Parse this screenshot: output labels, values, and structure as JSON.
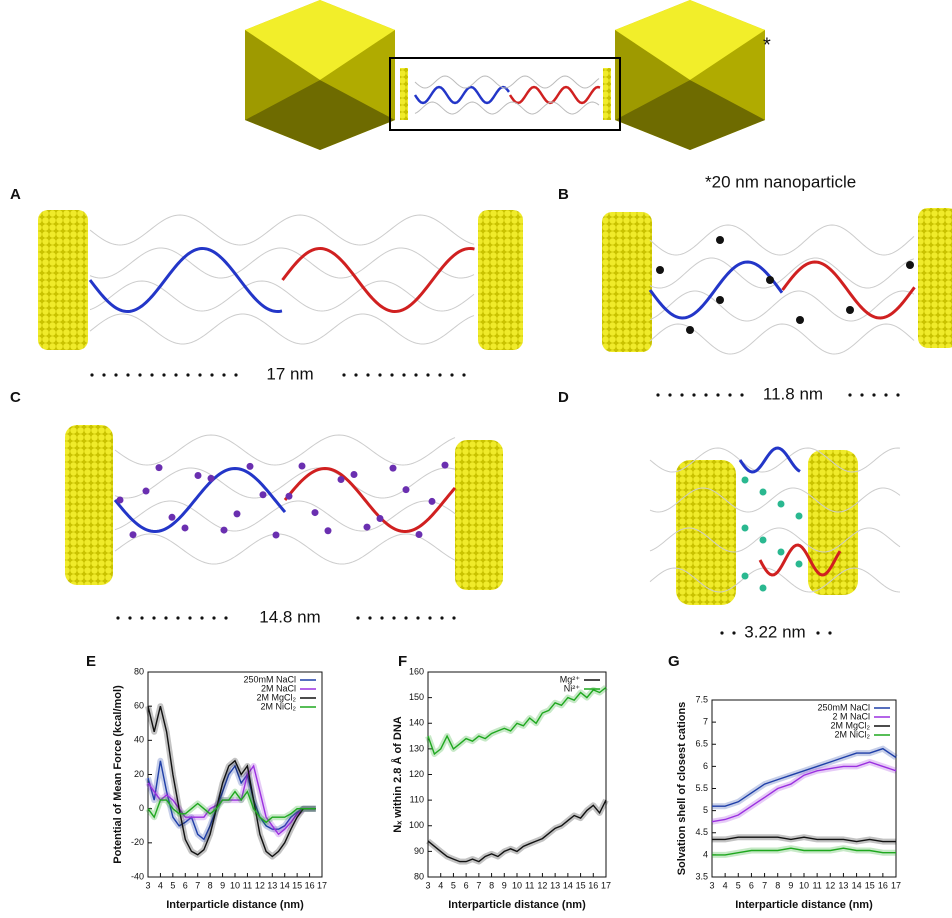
{
  "header": {
    "star": "*",
    "caption": "*20 nm nanoparticle"
  },
  "panels": [
    {
      "label": "A",
      "distance": "17 nm"
    },
    {
      "label": "B",
      "distance": "11.8 nm"
    },
    {
      "label": "C",
      "distance": "14.8 nm"
    },
    {
      "label": "D",
      "distance": "3.22 nm"
    }
  ],
  "chart_data": [
    {
      "type": "line",
      "label": "E",
      "xlabel": "Interparticle distance (nm)",
      "ylabel": "Potential of Mean Force (kcal/mol)",
      "legend": "upper right",
      "x": [
        3,
        3.5,
        4,
        4.5,
        5,
        5.5,
        6,
        6.5,
        7,
        7.5,
        8,
        8.5,
        9,
        9.5,
        10,
        10.5,
        11,
        11.5,
        12,
        12.5,
        13,
        13.5,
        14,
        14.5,
        15,
        15.5,
        16,
        16.5
      ],
      "xlim": [
        3,
        17
      ],
      "xticks": [
        3,
        4,
        5,
        6,
        7,
        8,
        9,
        10,
        11,
        12,
        13,
        14,
        15,
        16,
        17
      ],
      "ylim": [
        -40,
        80
      ],
      "yticks": [
        -40,
        -20,
        0,
        20,
        40,
        60,
        80
      ],
      "series": [
        {
          "name": "250mM NaCl",
          "color": "#1f3fa8",
          "values": [
            18,
            5,
            28,
            10,
            -5,
            -10,
            -8,
            -5,
            -15,
            -18,
            -10,
            0,
            10,
            20,
            25,
            15,
            20,
            5,
            -5,
            -10,
            -12,
            -12,
            -10,
            -5,
            -2,
            0,
            0,
            0
          ]
        },
        {
          "name": "2M NaCl",
          "color": "#9b30e0",
          "values": [
            15,
            10,
            5,
            8,
            5,
            0,
            -5,
            -5,
            -5,
            -5,
            0,
            2,
            5,
            5,
            5,
            5,
            20,
            25,
            10,
            -5,
            -10,
            -15,
            -12,
            -8,
            -3,
            0,
            0,
            0
          ]
        },
        {
          "name": "2M MgCl₂",
          "color": "#111111",
          "values": [
            60,
            45,
            60,
            45,
            20,
            0,
            -18,
            -25,
            -27,
            -24,
            -15,
            0,
            15,
            25,
            28,
            20,
            25,
            5,
            -15,
            -25,
            -28,
            -25,
            -20,
            -12,
            -5,
            0,
            0,
            0
          ]
        },
        {
          "name": "2M NiCl₂",
          "color": "#1fa81f",
          "values": [
            0,
            -5,
            5,
            5,
            0,
            -3,
            -3,
            0,
            3,
            0,
            -3,
            0,
            5,
            5,
            10,
            5,
            10,
            0,
            -5,
            -8,
            -5,
            -5,
            -5,
            -3,
            0,
            0,
            0,
            0
          ]
        }
      ]
    },
    {
      "type": "line",
      "label": "F",
      "xlabel": "Interparticle distance (nm)",
      "ylabel": "Nₓ within 2.8 Å of DNA",
      "legend": "upper right",
      "x": [
        3,
        3.5,
        4,
        4.5,
        5,
        5.5,
        6,
        6.5,
        7,
        7.5,
        8,
        8.5,
        9,
        9.5,
        10,
        10.5,
        11,
        11.5,
        12,
        12.5,
        13,
        13.5,
        14,
        14.5,
        15,
        15.5,
        16,
        16.5,
        17
      ],
      "xlim": [
        3,
        17
      ],
      "xticks": [
        3,
        4,
        5,
        6,
        7,
        8,
        9,
        10,
        11,
        12,
        13,
        14,
        15,
        16,
        17
      ],
      "ylim": [
        80,
        160
      ],
      "yticks": [
        80,
        90,
        100,
        110,
        120,
        130,
        140,
        150,
        160
      ],
      "series": [
        {
          "name": "Mg²⁺",
          "color": "#111111",
          "values": [
            94,
            92,
            90,
            88,
            87,
            86,
            86,
            87,
            86,
            88,
            89,
            88,
            90,
            91,
            90,
            92,
            93,
            94,
            95,
            97,
            99,
            100,
            102,
            104,
            103,
            106,
            108,
            105,
            110
          ]
        },
        {
          "name": "Ni²⁺",
          "color": "#1fa81f",
          "values": [
            135,
            128,
            130,
            135,
            130,
            132,
            134,
            133,
            135,
            134,
            136,
            137,
            138,
            137,
            140,
            139,
            142,
            140,
            144,
            145,
            148,
            147,
            150,
            149,
            152,
            150,
            153,
            152,
            154
          ]
        }
      ]
    },
    {
      "type": "line",
      "label": "G",
      "xlabel": "Interparticle distance (nm)",
      "ylabel": "Solvation shell of closest cations",
      "legend": "upper right",
      "x": [
        3,
        4,
        5,
        6,
        7,
        8,
        9,
        10,
        11,
        12,
        13,
        14,
        15,
        16,
        17
      ],
      "xlim": [
        3,
        17
      ],
      "xticks": [
        3,
        4,
        5,
        6,
        7,
        8,
        9,
        10,
        11,
        12,
        13,
        14,
        15,
        16,
        17
      ],
      "ylim": [
        3.5,
        7.5
      ],
      "yticks": [
        3.5,
        4,
        4.5,
        5,
        5.5,
        6,
        6.5,
        7,
        7.5
      ],
      "series": [
        {
          "name": "250mM NaCl",
          "color": "#1f3fa8",
          "values": [
            5.1,
            5.1,
            5.2,
            5.4,
            5.6,
            5.7,
            5.8,
            5.9,
            6.0,
            6.1,
            6.2,
            6.3,
            6.3,
            6.4,
            6.2
          ]
        },
        {
          "name": "2 M NaCl",
          "color": "#9b30e0",
          "values": [
            4.75,
            4.8,
            4.9,
            5.1,
            5.3,
            5.5,
            5.6,
            5.8,
            5.9,
            5.95,
            6.0,
            6.0,
            6.1,
            6.0,
            5.9
          ]
        },
        {
          "name": "2M MgCl₂",
          "color": "#111111",
          "values": [
            4.35,
            4.35,
            4.4,
            4.4,
            4.4,
            4.4,
            4.35,
            4.4,
            4.35,
            4.35,
            4.35,
            4.3,
            4.35,
            4.3,
            4.3
          ]
        },
        {
          "name": "2M NiCl₂",
          "color": "#1fa81f",
          "values": [
            4.0,
            4.0,
            4.05,
            4.1,
            4.1,
            4.1,
            4.15,
            4.1,
            4.1,
            4.1,
            4.15,
            4.1,
            4.1,
            4.05,
            4.05
          ]
        }
      ]
    }
  ]
}
